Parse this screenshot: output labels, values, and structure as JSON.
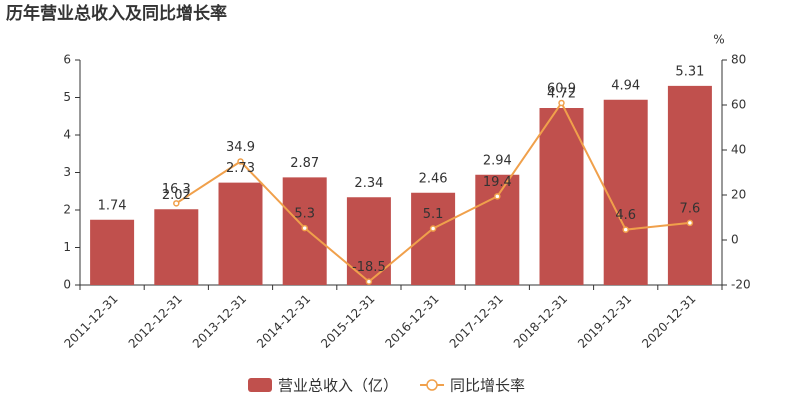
{
  "chart_data": {
    "type": "bar-line",
    "title": "历年营业总收入及同比增长率",
    "categories": [
      "2011-12-31",
      "2012-12-31",
      "2013-12-31",
      "2014-12-31",
      "2015-12-31",
      "2016-12-31",
      "2017-12-31",
      "2018-12-31",
      "2019-12-31",
      "2020-12-31"
    ],
    "series": [
      {
        "name": "营业总收入（亿）",
        "type": "bar",
        "color": "#c0504d",
        "values": [
          1.74,
          2.02,
          2.73,
          2.87,
          2.34,
          2.46,
          2.94,
          4.72,
          4.94,
          5.31
        ]
      },
      {
        "name": "同比增长率",
        "type": "line",
        "axis": "y2",
        "color": "#f0a04b",
        "values": [
          null,
          16.3,
          34.9,
          5.3,
          -18.5,
          5.1,
          19.4,
          60.9,
          4.6,
          7.6
        ]
      }
    ],
    "ylim": [
      0,
      6
    ],
    "yticks": [
      0,
      1,
      2,
      3,
      4,
      5,
      6
    ],
    "y2lim": [
      -20,
      80
    ],
    "y2ticks": [
      -20,
      0,
      20,
      40,
      60,
      80
    ],
    "y2label": "%"
  }
}
